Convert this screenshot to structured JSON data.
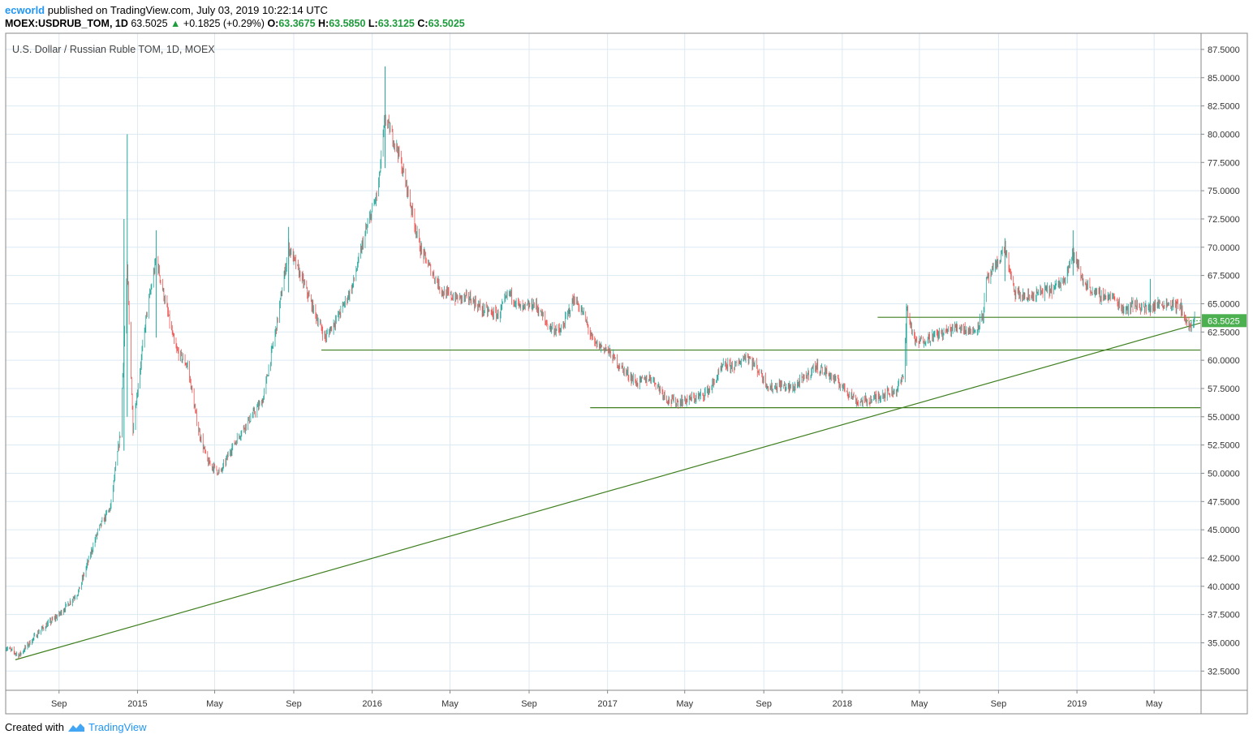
{
  "header": {
    "author": "ecworld",
    "published_text": "published on TradingView.com, July 03, 2019 10:22:14 UTC",
    "symbol": "MOEX:USDRUB_TOM, 1D",
    "last": "63.5025",
    "change": "+0.1825 (+0.29%)",
    "o_label": "O:",
    "o_val": "63.3675",
    "h_label": "H:",
    "h_val": "63.5850",
    "l_label": "L:",
    "l_val": "63.3125",
    "c_label": "C:",
    "c_val": "63.5025"
  },
  "footer": {
    "created_with": "Created with",
    "brand": "TradingView"
  },
  "colors": {
    "up": "#26a69a",
    "down": "#ef5350",
    "lines": "#3f7f1f",
    "grid": "#dce9f3",
    "price_tag": "#4caf50",
    "author": "#2196f3"
  },
  "icons": {
    "up_arrow": "triangle-up-icon",
    "logo": "tradingview-logo-icon"
  },
  "chart_data": {
    "type": "candlestick",
    "title": "U.S. Dollar / Russian Ruble TOM, 1D, MOEX",
    "last_price_label": "63.5025",
    "y_ticks": [
      "32.5000",
      "35.0000",
      "37.5000",
      "40.0000",
      "42.5000",
      "45.0000",
      "47.5000",
      "50.0000",
      "52.5000",
      "55.0000",
      "57.5000",
      "60.0000",
      "62.5000",
      "65.0000",
      "67.5000",
      "70.0000",
      "72.5000",
      "75.0000",
      "77.5000",
      "80.0000",
      "82.5000",
      "85.0000",
      "87.5000"
    ],
    "ylim": [
      30.8,
      88.5
    ],
    "x_ticks": [
      {
        "label": "Sep",
        "date": "2014-09-01"
      },
      {
        "label": "2015",
        "date": "2015-01-01"
      },
      {
        "label": "May",
        "date": "2015-05-01"
      },
      {
        "label": "Sep",
        "date": "2015-09-01"
      },
      {
        "label": "2016",
        "date": "2016-01-01"
      },
      {
        "label": "May",
        "date": "2016-05-01"
      },
      {
        "label": "Sep",
        "date": "2016-09-01"
      },
      {
        "label": "2017",
        "date": "2017-01-01"
      },
      {
        "label": "May",
        "date": "2017-05-01"
      },
      {
        "label": "Sep",
        "date": "2017-09-01"
      },
      {
        "label": "2018",
        "date": "2018-01-01"
      },
      {
        "label": "May",
        "date": "2018-05-01"
      },
      {
        "label": "Sep",
        "date": "2018-09-01"
      },
      {
        "label": "2019",
        "date": "2019-01-01"
      },
      {
        "label": "May",
        "date": "2019-05-01"
      }
    ],
    "xlim": [
      "2014-06-10",
      "2019-07-13"
    ],
    "price_path": [
      [
        "2014-06-10",
        34.6
      ],
      [
        "2014-07-01",
        33.9
      ],
      [
        "2014-08-01",
        36.0
      ],
      [
        "2014-09-01",
        37.5
      ],
      [
        "2014-10-01",
        39.5
      ],
      [
        "2014-11-01",
        45.0
      ],
      [
        "2014-11-20",
        47.0
      ],
      [
        "2014-12-05",
        53.5
      ],
      [
        "2014-12-16",
        68.0
      ],
      [
        "2014-12-25",
        54.0
      ],
      [
        "2015-01-15",
        64.0
      ],
      [
        "2015-01-30",
        69.0
      ],
      [
        "2015-02-10",
        66.0
      ],
      [
        "2015-03-01",
        61.0
      ],
      [
        "2015-03-20",
        59.5
      ],
      [
        "2015-04-05",
        54.0
      ],
      [
        "2015-04-20",
        51.0
      ],
      [
        "2015-05-10",
        50.0
      ],
      [
        "2015-05-25",
        52.0
      ],
      [
        "2015-06-15",
        54.0
      ],
      [
        "2015-07-15",
        56.5
      ],
      [
        "2015-08-05",
        63.0
      ],
      [
        "2015-08-24",
        70.0
      ],
      [
        "2015-09-15",
        67.0
      ],
      [
        "2015-10-05",
        64.0
      ],
      [
        "2015-10-20",
        62.0
      ],
      [
        "2015-11-10",
        64.0
      ],
      [
        "2015-12-01",
        66.5
      ],
      [
        "2015-12-20",
        71.0
      ],
      [
        "2016-01-10",
        75.0
      ],
      [
        "2016-01-21",
        81.5
      ],
      [
        "2016-02-10",
        78.5
      ],
      [
        "2016-02-25",
        75.0
      ],
      [
        "2016-03-15",
        70.0
      ],
      [
        "2016-04-01",
        68.0
      ],
      [
        "2016-04-20",
        66.0
      ],
      [
        "2016-05-10",
        65.5
      ],
      [
        "2016-06-01",
        65.5
      ],
      [
        "2016-06-20",
        64.5
      ],
      [
        "2016-07-15",
        64.0
      ],
      [
        "2016-08-01",
        66.0
      ],
      [
        "2016-08-20",
        64.5
      ],
      [
        "2016-09-10",
        65.0
      ],
      [
        "2016-10-01",
        63.0
      ],
      [
        "2016-10-20",
        62.5
      ],
      [
        "2016-11-10",
        65.5
      ],
      [
        "2016-11-25",
        64.0
      ],
      [
        "2016-12-10",
        61.5
      ],
      [
        "2016-12-30",
        61.0
      ],
      [
        "2017-01-20",
        59.5
      ],
      [
        "2017-02-15",
        58.0
      ],
      [
        "2017-03-10",
        58.5
      ],
      [
        "2017-04-05",
        56.5
      ],
      [
        "2017-04-20",
        56.3
      ],
      [
        "2017-05-05",
        56.5
      ],
      [
        "2017-05-25",
        56.8
      ],
      [
        "2017-06-10",
        57.5
      ],
      [
        "2017-06-30",
        59.5
      ],
      [
        "2017-07-20",
        59.5
      ],
      [
        "2017-08-05",
        60.5
      ],
      [
        "2017-08-25",
        59.0
      ],
      [
        "2017-09-10",
        57.5
      ],
      [
        "2017-09-25",
        57.8
      ],
      [
        "2017-10-15",
        57.5
      ],
      [
        "2017-11-05",
        58.5
      ],
      [
        "2017-11-20",
        59.5
      ],
      [
        "2017-12-10",
        58.8
      ],
      [
        "2018-01-05",
        57.5
      ],
      [
        "2018-01-25",
        56.3
      ],
      [
        "2018-02-15",
        56.5
      ],
      [
        "2018-03-05",
        57.0
      ],
      [
        "2018-03-25",
        57.3
      ],
      [
        "2018-04-06",
        58.5
      ],
      [
        "2018-04-11",
        64.5
      ],
      [
        "2018-04-25",
        61.5
      ],
      [
        "2018-05-15",
        62.0
      ],
      [
        "2018-06-10",
        62.5
      ],
      [
        "2018-07-01",
        63.0
      ],
      [
        "2018-07-25",
        62.5
      ],
      [
        "2018-08-08",
        64.0
      ],
      [
        "2018-08-13",
        67.0
      ],
      [
        "2018-08-25",
        68.0
      ],
      [
        "2018-09-11",
        70.0
      ],
      [
        "2018-09-25",
        66.0
      ],
      [
        "2018-10-15",
        65.5
      ],
      [
        "2018-11-05",
        66.0
      ],
      [
        "2018-11-25",
        66.3
      ],
      [
        "2018-12-10",
        67.0
      ],
      [
        "2018-12-26",
        69.5
      ],
      [
        "2019-01-10",
        67.0
      ],
      [
        "2019-02-01",
        65.8
      ],
      [
        "2019-02-25",
        65.6
      ],
      [
        "2019-03-15",
        64.5
      ],
      [
        "2019-04-01",
        65.0
      ],
      [
        "2019-04-20",
        64.5
      ],
      [
        "2019-05-10",
        65.0
      ],
      [
        "2019-05-30",
        65.0
      ],
      [
        "2019-06-15",
        64.5
      ],
      [
        "2019-06-20",
        63.2
      ],
      [
        "2019-06-27",
        63.0
      ],
      [
        "2019-07-03",
        63.5
      ]
    ],
    "spikes": [
      {
        "date": "2014-12-16",
        "high": 80.0,
        "low": 55.0
      },
      {
        "date": "2014-12-11",
        "high": 72.5,
        "low": 52.0
      },
      {
        "date": "2015-01-30",
        "high": 71.5,
        "low": 62.0
      },
      {
        "date": "2015-08-24",
        "high": 71.8,
        "low": 66.0
      },
      {
        "date": "2016-01-21",
        "high": 86.0,
        "low": 77.0
      },
      {
        "date": "2018-04-11",
        "high": 65.0,
        "low": 59.5
      },
      {
        "date": "2018-09-11",
        "high": 70.8,
        "low": 67.0
      },
      {
        "date": "2018-12-26",
        "high": 71.5,
        "low": 67.5
      },
      {
        "date": "2019-04-25",
        "high": 67.2,
        "low": 64.2
      }
    ],
    "trend_lines": [
      {
        "name": "support-2015",
        "from": [
          "2015-10-14",
          60.9
        ],
        "to": [
          "2019-07-12",
          60.9
        ]
      },
      {
        "name": "support-2016",
        "from": [
          "2016-12-05",
          55.8
        ],
        "to": [
          "2019-07-12",
          55.8
        ]
      },
      {
        "name": "resistance-2018",
        "from": [
          "2018-02-25",
          63.8
        ],
        "to": [
          "2019-07-12",
          63.8
        ]
      },
      {
        "name": "long-trend",
        "from": [
          "2014-06-25",
          33.5
        ],
        "to": [
          "2019-07-12",
          63.3
        ]
      }
    ],
    "grid": true
  }
}
